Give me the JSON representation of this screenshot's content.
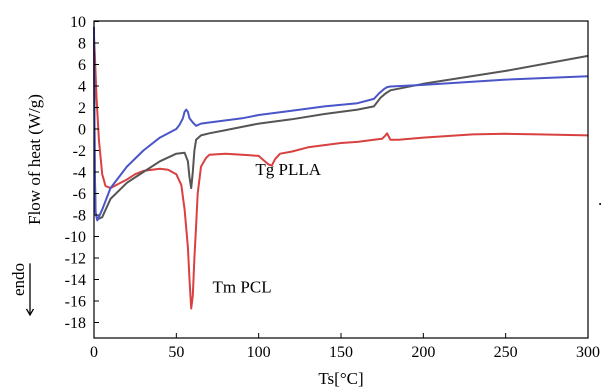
{
  "chart_data": {
    "type": "line",
    "xlabel": "Ts[°C]",
    "ylabel": "Flow of heat (W/g)",
    "xlim": [
      0,
      300
    ],
    "ylim": [
      -18,
      10
    ],
    "xticks": [
      0,
      50,
      100,
      150,
      200,
      250,
      300
    ],
    "yticks": [
      10,
      8,
      6,
      4,
      2,
      0,
      -2,
      -4,
      -6,
      -8,
      -10,
      -12,
      -14,
      -16,
      -18
    ],
    "grid": false,
    "legend": "none",
    "annotations": [
      {
        "text": "Tg PLLA",
        "x": 98,
        "y": -4.3
      },
      {
        "text": "Tm PCL",
        "x": 72,
        "y": -15.2
      },
      {
        "text": "endo",
        "x": -17,
        "y": -14
      }
    ],
    "side_mark": ".",
    "series": [
      {
        "color": "#d94040",
        "x": [
          0,
          0.5,
          1.5,
          3,
          5,
          7,
          10,
          15,
          20,
          25,
          30,
          40,
          45,
          50,
          53,
          55,
          57,
          58,
          59,
          60,
          61,
          62,
          63,
          65,
          68,
          70,
          80,
          90,
          100,
          103,
          106,
          108,
          110,
          113,
          120,
          130,
          140,
          150,
          160,
          170,
          175,
          177,
          178,
          180,
          185,
          200,
          230,
          250,
          270,
          300
        ],
        "y": [
          8.5,
          7,
          3,
          -1,
          -4.2,
          -5.3,
          -5.5,
          -5.1,
          -4.7,
          -4.2,
          -3.9,
          -3.7,
          -3.8,
          -4.2,
          -5.2,
          -7.5,
          -11,
          -14,
          -16.7,
          -15.5,
          -12,
          -9,
          -6,
          -3.5,
          -2.7,
          -2.4,
          -2.3,
          -2.4,
          -2.5,
          -2.9,
          -3.3,
          -3.4,
          -2.8,
          -2.3,
          -2.1,
          -1.7,
          -1.5,
          -1.3,
          -1.2,
          -1.0,
          -0.9,
          -0.6,
          -0.4,
          -1.0,
          -1.0,
          -0.8,
          -0.5,
          -0.45,
          -0.5,
          -0.6
        ]
      },
      {
        "color": "#555555",
        "x": [
          0,
          0.5,
          1,
          2,
          5,
          10,
          20,
          30,
          40,
          50,
          55,
          57,
          58,
          59,
          60,
          61,
          62,
          65,
          70,
          80,
          100,
          120,
          140,
          160,
          170,
          174,
          177,
          180,
          200,
          250,
          300
        ],
        "y": [
          8,
          -4,
          -7.8,
          -8.4,
          -8.2,
          -6.5,
          -5,
          -4,
          -3,
          -2.3,
          -2.2,
          -3.0,
          -4.5,
          -5.5,
          -4.0,
          -2.0,
          -1.0,
          -0.6,
          -0.4,
          -0.1,
          0.5,
          0.9,
          1.4,
          1.8,
          2.1,
          2.9,
          3.3,
          3.6,
          4.2,
          5.4,
          6.8
        ]
      },
      {
        "color": "#4a55c8",
        "x": [
          0,
          0.5,
          1,
          2,
          5,
          10,
          20,
          30,
          40,
          50,
          52,
          54,
          55,
          56,
          57,
          58,
          60,
          62,
          65,
          70,
          80,
          90,
          100,
          120,
          140,
          160,
          170,
          173,
          176,
          178,
          180,
          200,
          250,
          300
        ],
        "y": [
          9.5,
          -4,
          -7.8,
          -8.5,
          -7.5,
          -5.5,
          -3.5,
          -2,
          -0.8,
          0,
          0.4,
          1.0,
          1.6,
          1.8,
          1.6,
          1.0,
          0.6,
          0.3,
          0.5,
          0.6,
          0.8,
          1.0,
          1.3,
          1.7,
          2.1,
          2.4,
          2.8,
          3.3,
          3.7,
          3.9,
          3.95,
          4.1,
          4.6,
          4.9
        ]
      }
    ]
  }
}
